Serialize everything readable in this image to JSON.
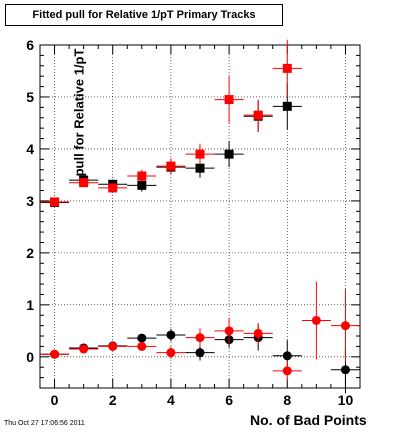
{
  "chart_data": {
    "type": "scatter",
    "title": "Fitted pull for Relative 1/pT Primary Tracks",
    "xlabel": "No. of Bad Points",
    "ylabel": "pull for Relative 1/pT",
    "xlim": [
      -0.5,
      10.5
    ],
    "ylim": [
      -0.6,
      6.0
    ],
    "x_ticks": [
      0,
      2,
      4,
      6,
      8,
      10
    ],
    "y_ticks": [
      0,
      1,
      2,
      3,
      4,
      5,
      6
    ],
    "grid": true,
    "series": [
      {
        "marker": "square",
        "color": "#000000",
        "x": [
          0,
          1,
          2,
          3,
          4,
          5,
          6,
          7,
          8
        ],
        "y": [
          2.97,
          3.4,
          3.32,
          3.3,
          3.65,
          3.63,
          3.9,
          4.63,
          4.82
        ],
        "yerr": [
          0.04,
          0.06,
          0.09,
          0.12,
          0.13,
          0.18,
          0.25,
          0.3,
          0.45
        ]
      },
      {
        "marker": "square",
        "color": "#ff0000",
        "x": [
          0,
          1,
          2,
          3,
          4,
          5,
          6,
          7,
          8
        ],
        "y": [
          2.98,
          3.35,
          3.25,
          3.48,
          3.67,
          3.9,
          4.95,
          4.65,
          5.55
        ],
        "yerr": [
          0.04,
          0.06,
          0.08,
          0.12,
          0.15,
          0.2,
          0.45,
          0.3,
          0.55
        ]
      },
      {
        "marker": "circle",
        "color": "#000000",
        "x": [
          0,
          1,
          2,
          3,
          4,
          5,
          6,
          7,
          8,
          10
        ],
        "y": [
          0.05,
          0.17,
          0.21,
          0.36,
          0.42,
          0.08,
          0.33,
          0.37,
          0.02,
          -0.25
        ],
        "yerr": [
          0.03,
          0.04,
          0.06,
          0.08,
          0.12,
          0.15,
          0.15,
          0.25,
          0.3,
          0.45
        ]
      },
      {
        "marker": "circle",
        "color": "#ff0000",
        "x": [
          0,
          1,
          2,
          3,
          4,
          5,
          6,
          7,
          8,
          9,
          10
        ],
        "y": [
          0.05,
          0.15,
          0.2,
          0.2,
          0.08,
          0.37,
          0.5,
          0.45,
          -0.27,
          0.7,
          0.6
        ],
        "yerr": [
          0.03,
          0.04,
          0.06,
          0.08,
          0.12,
          0.18,
          0.25,
          0.2,
          0.2,
          0.75,
          0.7
        ]
      }
    ]
  },
  "timestamp": "Thu Oct 27 17:06:56 2011"
}
